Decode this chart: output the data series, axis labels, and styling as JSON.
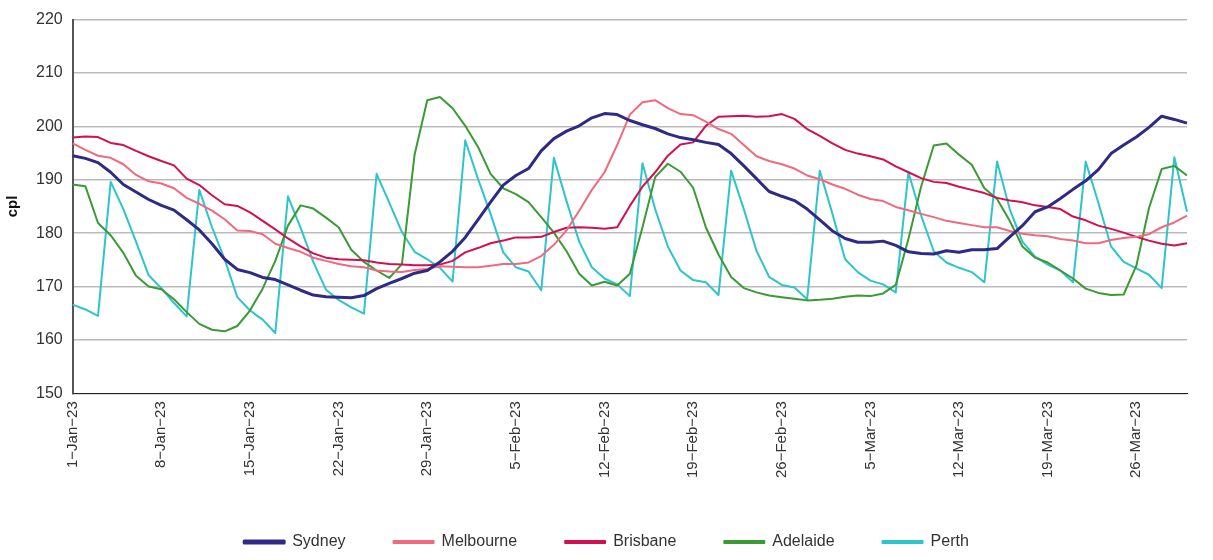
{
  "chart_data": {
    "type": "line",
    "ylabel": "cpl",
    "categories": [
      "1−Jan−23",
      null,
      null,
      null,
      null,
      null,
      null,
      "8−Jan−23",
      null,
      null,
      null,
      null,
      null,
      null,
      "15−Jan−23",
      null,
      null,
      null,
      null,
      null,
      null,
      "22−Jan−23",
      null,
      null,
      null,
      null,
      null,
      null,
      "29−Jan−23",
      null,
      null,
      null,
      null,
      null,
      null,
      "5−Feb−23",
      null,
      null,
      null,
      null,
      null,
      null,
      "12−Feb−23",
      null,
      null,
      null,
      null,
      null,
      null,
      "19−Feb−23",
      null,
      null,
      null,
      null,
      null,
      null,
      "26−Feb−23",
      null,
      null,
      null,
      null,
      null,
      null,
      "5−Mar−23",
      null,
      null,
      null,
      null,
      null,
      null,
      "12−Mar−23",
      null,
      null,
      null,
      null,
      null,
      null,
      "19−Mar−23",
      null,
      null,
      null,
      null,
      null,
      null,
      "26−Mar−23",
      null,
      null,
      null,
      null
    ],
    "series": [
      {
        "name": "Sydney",
        "color": "#2e2a85",
        "values": [
          194.5,
          194.0,
          193.2,
          191.4,
          189.1,
          187.7,
          186.3,
          185.2,
          184.3,
          182.5,
          180.6,
          178.0,
          175.1,
          173.2,
          172.6,
          171.7,
          171.3,
          170.3,
          169.3,
          168.4,
          168.1,
          168.0,
          167.9,
          168.3,
          169.6,
          170.6,
          171.5,
          172.5,
          173.0,
          174.6,
          176.6,
          179.2,
          182.5,
          185.8,
          189.0,
          190.8,
          192.1,
          195.4,
          197.7,
          199.1,
          200.1,
          201.6,
          202.4,
          202.2,
          201.1,
          200.3,
          199.6,
          198.6,
          197.9,
          197.5,
          197.0,
          196.6,
          194.9,
          192.6,
          190.2,
          187.8,
          186.9,
          186.1,
          184.5,
          182.5,
          180.4,
          179.0,
          178.3,
          178.3,
          178.5,
          177.7,
          176.5,
          176.2,
          176.1,
          176.7,
          176.4,
          176.9,
          176.9,
          177.1,
          179.3,
          181.4,
          184.0,
          184.9,
          186.5,
          188.2,
          189.8,
          191.9,
          194.9,
          196.5,
          198.0,
          199.8,
          201.9,
          201.3,
          200.6
        ]
      },
      {
        "name": "Melbourne",
        "color": "#f0697f",
        "values": [
          196.8,
          195.6,
          194.5,
          194.1,
          192.9,
          190.9,
          189.7,
          189.3,
          188.4,
          186.6,
          185.5,
          184.2,
          182.6,
          180.5,
          180.4,
          179.8,
          178.0,
          177.2,
          176.5,
          175.4,
          174.8,
          174.2,
          173.8,
          173.6,
          173.0,
          172.8,
          172.7,
          173.1,
          173.3,
          173.8,
          173.7,
          173.6,
          173.6,
          173.9,
          174.2,
          174.2,
          174.5,
          175.7,
          177.8,
          180.5,
          184.2,
          188.1,
          191.4,
          196.5,
          202.2,
          204.5,
          204.9,
          203.4,
          202.3,
          202.1,
          200.9,
          199.5,
          198.6,
          196.5,
          194.4,
          193.5,
          192.9,
          192.1,
          190.8,
          190.1,
          189.1,
          188.3,
          187.2,
          186.4,
          186.0,
          184.9,
          184.3,
          183.6,
          183.0,
          182.3,
          181.9,
          181.5,
          181.1,
          181.1,
          180.4,
          179.9,
          179.6,
          179.4,
          178.9,
          178.6,
          178.1,
          178.1,
          178.7,
          179.1,
          179.3,
          179.8,
          181.1,
          182.0,
          183.3
        ]
      },
      {
        "name": "Brisbane",
        "color": "#d40f50",
        "values": [
          197.9,
          198.1,
          198.0,
          196.9,
          196.5,
          195.4,
          194.4,
          193.5,
          192.7,
          190.2,
          189.0,
          187.1,
          185.4,
          185.1,
          183.9,
          182.3,
          180.7,
          179.0,
          177.5,
          176.2,
          175.4,
          175.1,
          175.0,
          174.9,
          174.5,
          174.2,
          174.1,
          174.0,
          174.0,
          174.1,
          174.8,
          176.4,
          177.2,
          178.1,
          178.6,
          179.2,
          179.2,
          179.3,
          180.2,
          181.0,
          181.1,
          181.0,
          180.8,
          181.1,
          185.1,
          188.7,
          191.4,
          194.5,
          196.6,
          197.0,
          200.1,
          201.8,
          201.9,
          202.0,
          201.8,
          201.9,
          202.3,
          201.4,
          199.5,
          198.2,
          196.8,
          195.6,
          194.9,
          194.4,
          193.8,
          192.5,
          191.4,
          190.3,
          189.6,
          189.4,
          188.7,
          188.1,
          187.5,
          186.6,
          186.1,
          185.8,
          185.2,
          184.9,
          184.5,
          183.1,
          182.4,
          181.4,
          180.8,
          180.1,
          179.3,
          178.6,
          178.0,
          177.7,
          178.1
        ]
      },
      {
        "name": "Adelaide",
        "color": "#3a9a34",
        "values": [
          189.1,
          188.8,
          181.9,
          179.6,
          176.3,
          172.0,
          170.0,
          169.5,
          167.6,
          165.2,
          163.0,
          161.9,
          161.6,
          162.6,
          165.5,
          169.6,
          174.8,
          181.4,
          185.2,
          184.6,
          182.9,
          181.1,
          176.9,
          174.6,
          173.0,
          171.6,
          174.2,
          194.7,
          204.9,
          205.5,
          203.4,
          200.1,
          196.2,
          191.1,
          188.4,
          187.3,
          185.8,
          183.0,
          180.1,
          176.6,
          172.4,
          170.2,
          170.9,
          170.2,
          172.4,
          181.1,
          190.5,
          193.0,
          191.5,
          188.5,
          181.1,
          176.0,
          171.8,
          169.7,
          168.9,
          168.3,
          168.0,
          167.7,
          167.4,
          167.5,
          167.7,
          168.1,
          168.3,
          168.2,
          168.7,
          170.3,
          178.9,
          188.7,
          196.4,
          196.8,
          194.7,
          192.8,
          188.4,
          186.4,
          182.3,
          177.5,
          175.4,
          174.5,
          173.0,
          171.5,
          169.6,
          168.8,
          168.4,
          168.5,
          173.9,
          184.7,
          192.0,
          192.6,
          190.8
        ]
      },
      {
        "name": "Perth",
        "color": "#2ec4cc",
        "values": [
          166.6,
          165.7,
          164.5,
          189.6,
          184.5,
          178.4,
          172.1,
          169.7,
          166.9,
          164.4,
          188.1,
          181.1,
          175.1,
          168.0,
          165.5,
          163.8,
          161.3,
          186.9,
          181.0,
          174.6,
          169.4,
          167.5,
          166.1,
          164.9,
          191.1,
          185.7,
          180.2,
          176.5,
          175.1,
          173.5,
          170.9,
          197.4,
          190.2,
          183.6,
          176.4,
          173.6,
          172.8,
          169.3,
          194.1,
          186.0,
          178.4,
          173.6,
          171.5,
          170.4,
          168.2,
          193.1,
          184.5,
          177.5,
          173.0,
          171.2,
          170.8,
          168.4,
          191.7,
          184.5,
          176.7,
          171.8,
          170.3,
          169.8,
          167.6,
          191.7,
          183.6,
          175.1,
          172.7,
          171.1,
          170.4,
          168.9,
          191.4,
          183.3,
          176.6,
          174.5,
          173.5,
          172.7,
          170.8,
          193.4,
          184.5,
          178.4,
          175.6,
          174.1,
          173.0,
          170.8,
          193.4,
          185.7,
          177.5,
          174.6,
          173.4,
          172.2,
          169.7,
          194.2,
          184.0
        ]
      }
    ],
    "ylim": [
      150,
      220
    ],
    "yticks": [
      150,
      160,
      170,
      180,
      190,
      200,
      210,
      220
    ],
    "grid": "y",
    "legend": "bottom"
  }
}
